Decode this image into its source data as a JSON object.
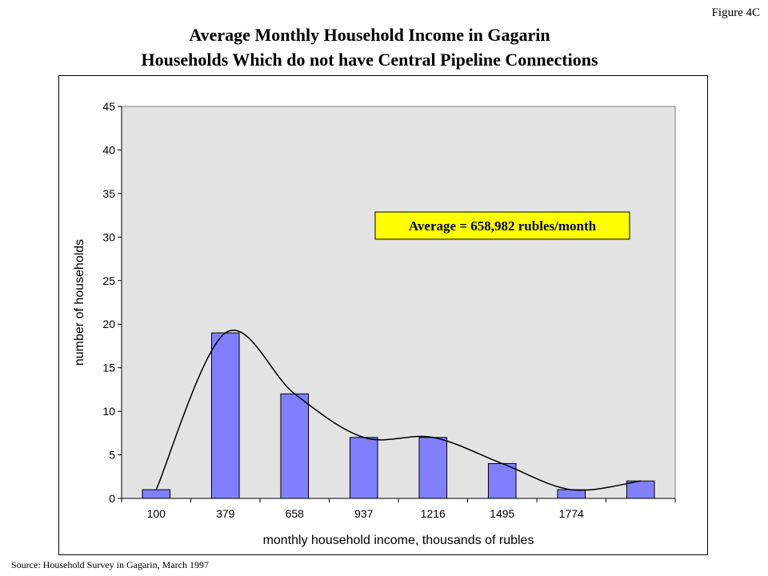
{
  "figure_label": "Figure 4C",
  "title_line1": "Average Monthly Household Income in Gagarin",
  "title_line2": "Households Which do not have Central Pipeline Connections",
  "source": "Source: Household Survey in Gagarin, March 1997",
  "chart_data": {
    "type": "bar",
    "categories": [
      "100",
      "379",
      "658",
      "937",
      "1216",
      "1495",
      "1774",
      ""
    ],
    "values": [
      1,
      19,
      12,
      7,
      7,
      4,
      1,
      2
    ],
    "xlabel": "monthly household income, thousands of rubles",
    "ylabel": "number of households",
    "ylim": [
      0,
      45
    ],
    "yticks": [
      0,
      5,
      10,
      15,
      20,
      25,
      30,
      35,
      40,
      45
    ],
    "annotation": "Average = 658,982 rubles/month",
    "trendline": "smooth curve",
    "grid": false,
    "legend": "none",
    "colors": {
      "bar_fill": "#8080ff",
      "plot_background": "#e3e3e3",
      "annotation_background": "#ffff00"
    }
  }
}
